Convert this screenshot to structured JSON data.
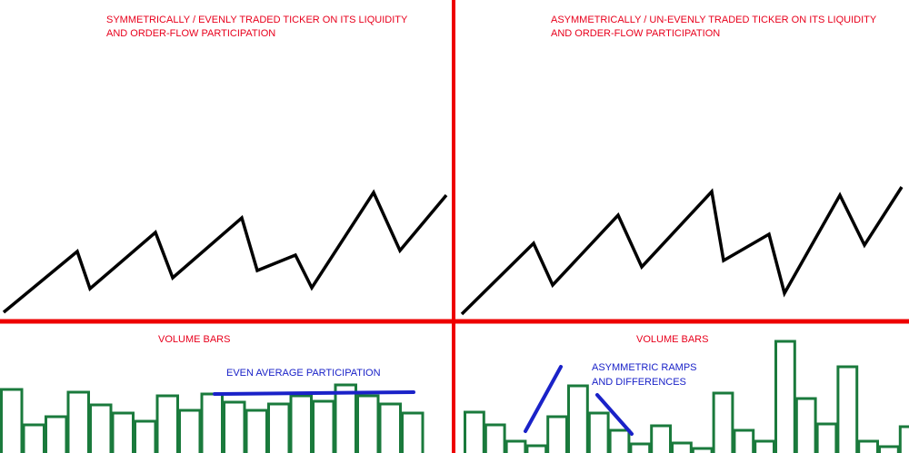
{
  "colors": {
    "divider": "#ee0000",
    "price_line": "#000000",
    "volume_bar": "#1a7a3c",
    "annotation": "#1a22c8",
    "label": "#e8001c"
  },
  "left_panel": {
    "title_line1": "SYMMETRICALLY / EVENLY TRADED TICKER ON ITS LIQUIDITY",
    "title_line2": "AND ORDER-FLOW PARTICIPATION",
    "volume_label": "VOLUME BARS",
    "annotation": "EVEN AVERAGE PARTICIPATION",
    "volume_levels": [
      70,
      31,
      40,
      67,
      53,
      44,
      35,
      63,
      47,
      65,
      56,
      47,
      54,
      63,
      57,
      75,
      63,
      54,
      44
    ]
  },
  "right_panel": {
    "title_line1": "ASYMMETRICALLY / UN-EVENLY TRADED TICKER ON ITS LIQUIDITY",
    "title_line2": "AND ORDER-FLOW PARTICIPATION",
    "volume_label": "VOLUME BARS",
    "annotation_line1": "ASYMMETRIC RAMPS",
    "annotation_line2": "AND DIFFERENCES",
    "volume_levels": [
      45,
      31,
      13,
      8,
      40,
      74,
      44,
      25,
      10,
      30,
      11,
      5,
      66,
      25,
      13,
      123,
      60,
      32,
      95,
      13,
      7,
      29
    ]
  }
}
